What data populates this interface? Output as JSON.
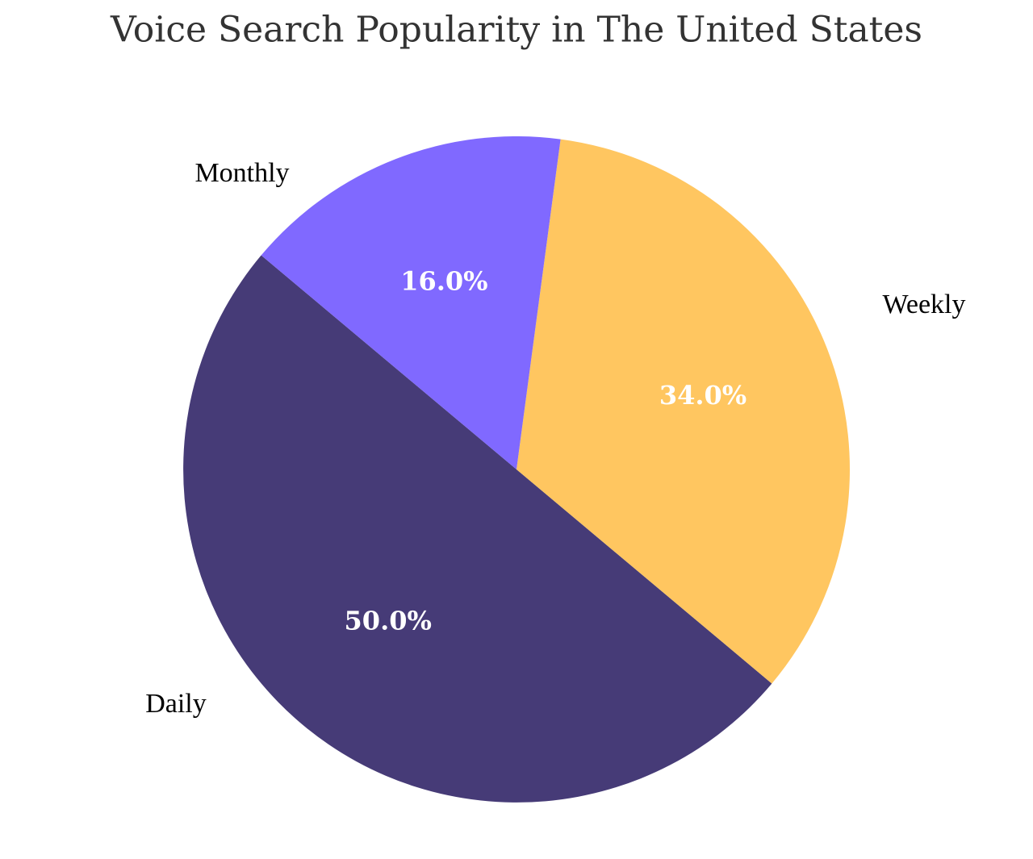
{
  "chart_data": {
    "type": "pie",
    "title": "Voice Search Popularity in The United States",
    "categories": [
      "Daily",
      "Weekly",
      "Monthly"
    ],
    "values": [
      50,
      34,
      16
    ],
    "value_labels": [
      "50.0%",
      "34.0%",
      "16.0%"
    ],
    "colors": [
      "#463b77",
      "#ffc660",
      "#8069ff"
    ]
  }
}
